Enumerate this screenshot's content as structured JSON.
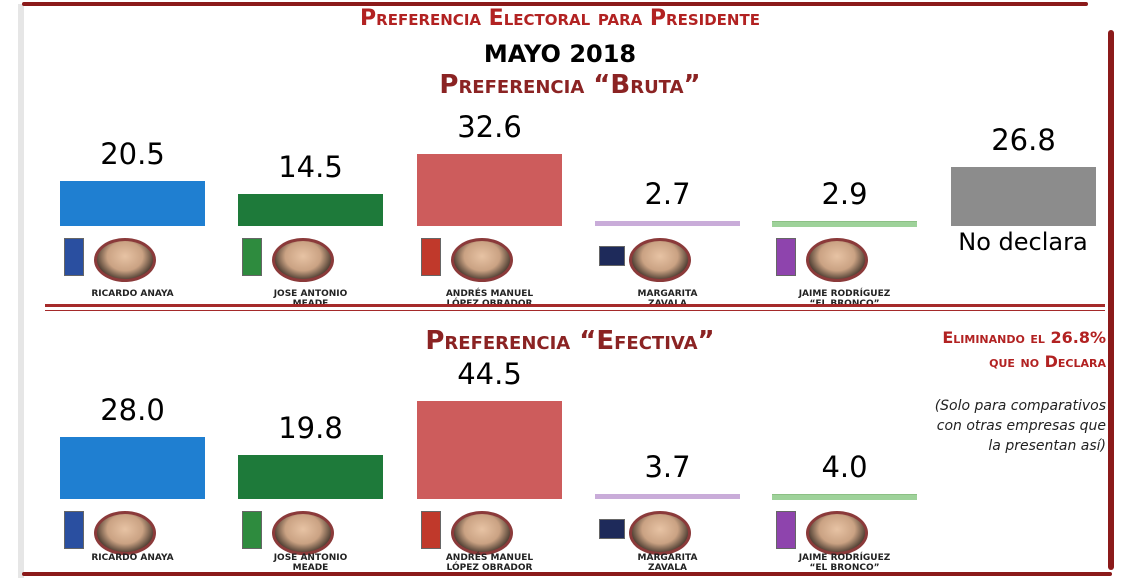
{
  "header": {
    "title": "Preferencia Electoral para Presidente",
    "date": "MAYO 2018"
  },
  "sections": {
    "bruta_title": "Preferencia “Bruta”",
    "efectiva_title": "Preferencia “Efectiva”"
  },
  "candidates": [
    {
      "name": "RICARDO ANAYA"
    },
    {
      "name": "JOSE ANTONIO\nMEADE"
    },
    {
      "name": "ANDRÉS MANUEL\nLÓPEZ OBRADOR"
    },
    {
      "name": "MARGARITA\nZAVALA"
    },
    {
      "name": "JAIME RODRÍGUEZ\n“EL BRONCO”"
    }
  ],
  "no_declara": "No\ndeclara",
  "note": {
    "line1": "Eliminando el 26.8%",
    "line2": "que no Declara",
    "comment": "(Solo para comparativos\ncon otras empresas que\nla presentan así)"
  },
  "colors": [
    "#1f7fd1",
    "#1e7a3a",
    "#cd5c5c",
    "#c8a8d8",
    "#c8a8d8",
    "#8c8c8c"
  ],
  "chart_data": [
    {
      "type": "bar",
      "title": "Preferencia “Bruta”",
      "categories": [
        "RICARDO ANAYA",
        "JOSE ANTONIO MEADE",
        "ANDRÉS MANUEL LÓPEZ OBRADOR",
        "MARGARITA ZAVALA",
        "JAIME RODRÍGUEZ “EL BRONCO”",
        "No declara"
      ],
      "values": [
        20.5,
        14.5,
        32.6,
        2.7,
        2.9,
        26.8
      ],
      "labels": [
        "20.5",
        "14.5",
        "32.6",
        "2.7",
        "2.9",
        "26.8"
      ],
      "grid": false
    },
    {
      "type": "bar",
      "title": "Preferencia “Efectiva”",
      "categories": [
        "RICARDO ANAYA",
        "JOSE ANTONIO MEADE",
        "ANDRÉS MANUEL LÓPEZ OBRADOR",
        "MARGARITA ZAVALA",
        "JAIME RODRÍGUEZ “EL BRONCO”"
      ],
      "values": [
        28.0,
        19.8,
        44.5,
        3.7,
        4.0
      ],
      "labels": [
        "28.0",
        "19.8",
        "44.5",
        "3.7",
        "4.0"
      ],
      "grid": false
    }
  ]
}
